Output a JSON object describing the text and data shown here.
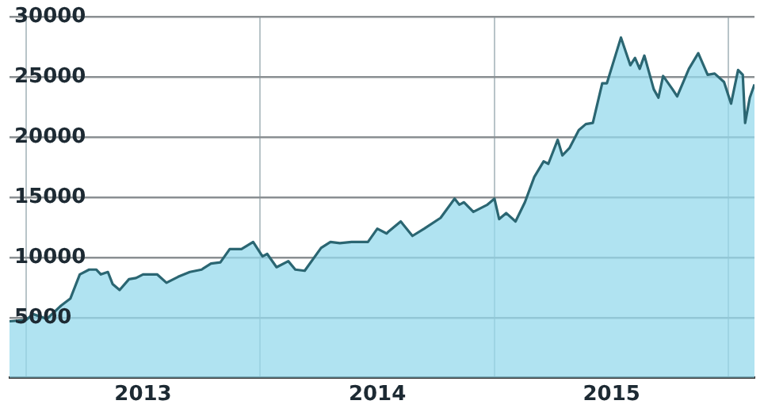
{
  "chart_data": {
    "type": "area",
    "grid": true,
    "legend": false,
    "marker": "none",
    "line_style": "solid",
    "xlim": [
      2012.93,
      2016.11
    ],
    "xticks": [
      {
        "value": 2013,
        "label": null
      },
      {
        "value": 2013.5,
        "label": "2013"
      },
      {
        "value": 2014,
        "label": null
      },
      {
        "value": 2014.5,
        "label": "2014"
      },
      {
        "value": 2015,
        "label": null
      },
      {
        "value": 2015.5,
        "label": "2015"
      },
      {
        "value": 2016,
        "label": null
      }
    ],
    "ylim": [
      0,
      30000
    ],
    "yticks": [
      5000,
      10000,
      15000,
      20000,
      25000,
      30000
    ],
    "series": [
      {
        "color": "#2b6672",
        "x": [
          2012.93,
          2013.0,
          2013.03,
          2013.09,
          2013.15,
          2013.19,
          2013.23,
          2013.27,
          2013.3,
          2013.32,
          2013.35,
          2013.37,
          2013.4,
          2013.44,
          2013.47,
          2013.5,
          2013.56,
          2013.6,
          2013.65,
          2013.7,
          2013.75,
          2013.79,
          2013.83,
          2013.87,
          2013.92,
          2013.97,
          2014.01,
          2014.03,
          2014.07,
          2014.12,
          2014.15,
          2014.19,
          2014.26,
          2014.3,
          2014.34,
          2014.39,
          2014.42,
          2014.46,
          2014.5,
          2014.54,
          2014.55,
          2014.6,
          2014.65,
          2014.7,
          2014.77,
          2014.83,
          2014.85,
          2014.87,
          2014.91,
          2014.97,
          2015.0,
          2015.02,
          2015.05,
          2015.09,
          2015.13,
          2015.17,
          2015.21,
          2015.23,
          2015.27,
          2015.29,
          2015.32,
          2015.36,
          2015.39,
          2015.42,
          2015.46,
          2015.48,
          2015.54,
          2015.58,
          2015.6,
          2015.62,
          2015.64,
          2015.68,
          2015.7,
          2015.72,
          2015.76,
          2015.78,
          2015.83,
          2015.87,
          2015.91,
          2015.94,
          2015.98,
          2016.01,
          2016.04,
          2016.06,
          2016.07,
          2016.09,
          2016.11
        ],
        "values": [
          4700,
          4800,
          5300,
          4900,
          6000,
          6600,
          8600,
          9000,
          9000,
          8600,
          8800,
          7800,
          7300,
          8200,
          8300,
          8600,
          8600,
          7900,
          8400,
          8800,
          9000,
          9500,
          9600,
          10700,
          10700,
          11300,
          10100,
          10300,
          9200,
          9700,
          9000,
          8900,
          10800,
          11300,
          11200,
          11300,
          11300,
          11300,
          12400,
          12000,
          12200,
          13000,
          11800,
          12400,
          13300,
          14900,
          14400,
          14600,
          13800,
          14400,
          14900,
          13200,
          13700,
          13000,
          14600,
          16700,
          18000,
          17800,
          19800,
          18500,
          19100,
          20600,
          21100,
          21200,
          24500,
          24500,
          28300,
          26000,
          26600,
          25700,
          26800,
          24000,
          23300,
          25100,
          24000,
          23400,
          25700,
          27000,
          25200,
          25300,
          24600,
          22800,
          25600,
          25200,
          21200,
          23300,
          24400
        ]
      }
    ]
  }
}
